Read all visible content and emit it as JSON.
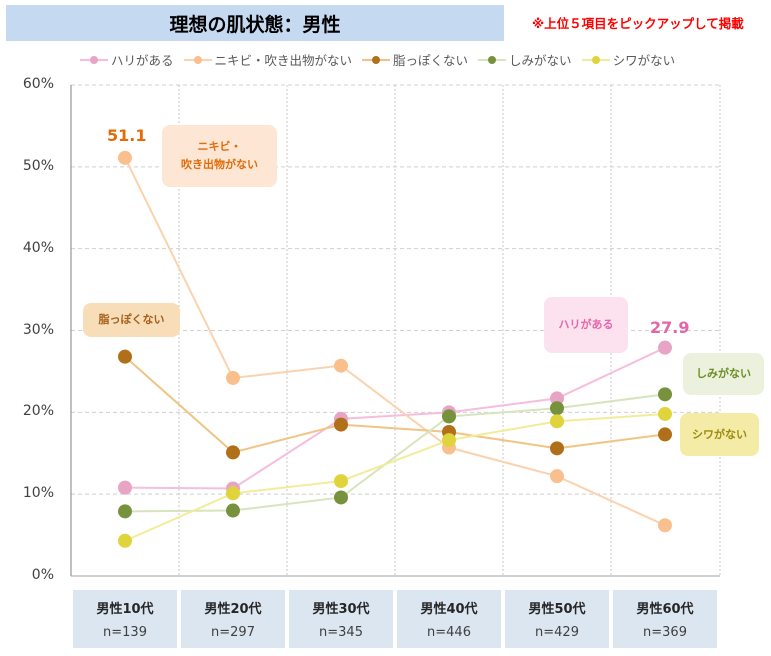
{
  "title": "理想の肌状態：男性",
  "note": "※上位５項目をピックアップして掲載",
  "chart_data": {
    "type": "line",
    "title": "理想の肌状態：男性",
    "categories": [
      "男性10代",
      "男性20代",
      "男性30代",
      "男性40代",
      "男性50代",
      "男性60代"
    ],
    "sample_sizes": [
      "n=139",
      "n=297",
      "n=345",
      "n=446",
      "n=429",
      "n=369"
    ],
    "ylim": [
      0,
      60
    ],
    "yticks": [
      "0%",
      "10%",
      "20%",
      "30%",
      "40%",
      "50%",
      "60%"
    ],
    "grid": true,
    "legend_position": "top",
    "series": [
      {
        "name": "ハリがある",
        "values": [
          10.8,
          10.7,
          19.2,
          20.0,
          21.7,
          27.9
        ],
        "marker_color": "#e8a4c4",
        "line_color": "#f6bddc"
      },
      {
        "name": "ニキビ・吹き出物がない",
        "values": [
          51.1,
          24.2,
          25.7,
          15.7,
          12.2,
          6.2
        ],
        "marker_color": "#f9c08e",
        "line_color": "#fbd2ae"
      },
      {
        "name": "脂っぽくない",
        "values": [
          26.8,
          15.1,
          18.5,
          17.6,
          15.6,
          17.3
        ],
        "marker_color": "#b0701a",
        "line_color": "#f0c484"
      },
      {
        "name": "しみがない",
        "values": [
          7.9,
          8.0,
          9.6,
          19.5,
          20.5,
          22.2
        ],
        "marker_color": "#76923c",
        "line_color": "#d7e4bc"
      },
      {
        "name": "シワがない",
        "values": [
          4.3,
          10.1,
          11.6,
          16.6,
          18.9,
          19.8
        ],
        "marker_color": "#e0d43c",
        "line_color": "#f2ec9a"
      }
    ],
    "annotations": {
      "value_51": "51.1",
      "value_27": "27.9",
      "callout_nikibi": "ニキビ・\n吹き出物がない",
      "callout_abura": "脂っぽくない",
      "callout_hari": "ハリがある",
      "callout_shimi": "しみがない",
      "callout_shiwa": "シワがない"
    }
  }
}
